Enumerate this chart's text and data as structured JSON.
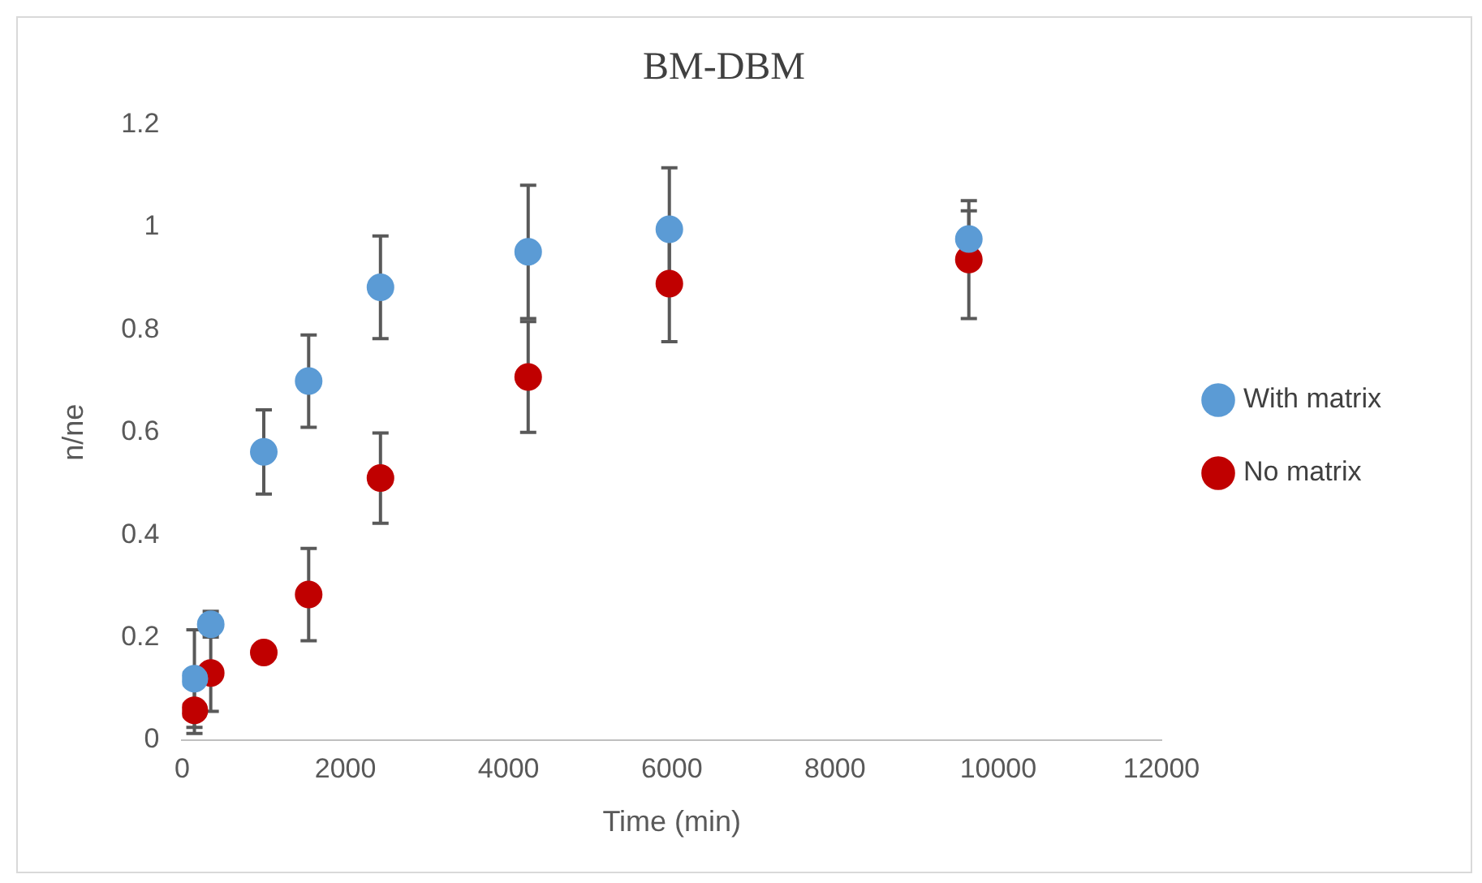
{
  "chart_data": {
    "type": "scatter",
    "title": "BM-DBM",
    "xlabel": "Time (min)",
    "ylabel": "n/ne",
    "x": [
      150,
      350,
      1000,
      1550,
      2430,
      4240,
      5970,
      9640
    ],
    "series": [
      {
        "name": "With matrix",
        "color": "#5b9bd5",
        "values": [
          0.12,
          0.226,
          0.562,
          0.7,
          0.883,
          0.952,
          0.996,
          0.977
        ],
        "errors": [
          0.095,
          0.025,
          0.082,
          0.09,
          0.1,
          0.13,
          0.12,
          0.055
        ]
      },
      {
        "name": "No matrix",
        "color": "#c00000",
        "values": [
          0.058,
          0.131,
          0.171,
          0.284,
          0.511,
          0.708,
          0.89,
          0.937
        ],
        "errors": [
          0.045,
          0.075,
          null,
          0.09,
          0.088,
          0.108,
          0.113,
          0.115
        ]
      }
    ],
    "xlim": [
      0,
      12000
    ],
    "xticks": [
      0,
      2000,
      4000,
      6000,
      8000,
      10000,
      12000
    ],
    "ylim": [
      0,
      1.2
    ],
    "yticks": [
      0,
      0.2,
      0.4,
      0.6,
      0.8,
      1,
      1.2
    ],
    "grid": false,
    "legend": "right",
    "marker": "circle"
  }
}
